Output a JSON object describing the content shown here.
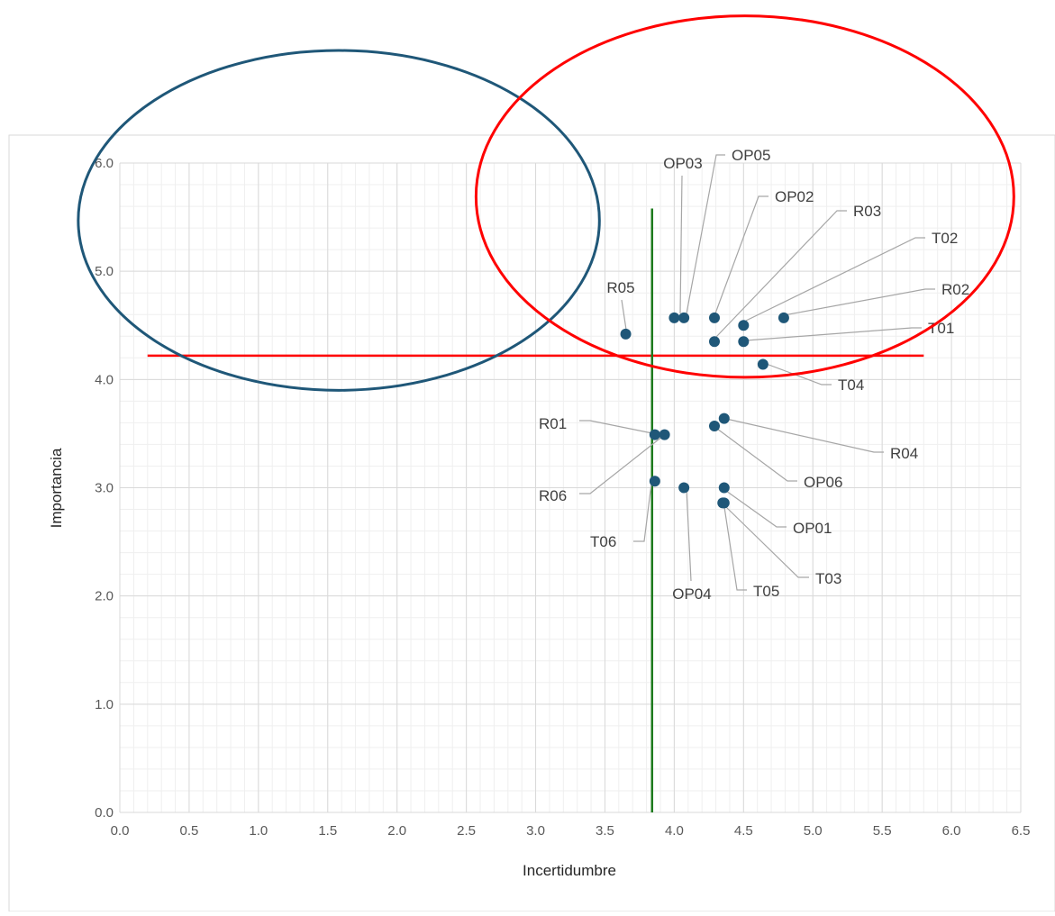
{
  "chart_data": {
    "type": "scatter",
    "xlabel": "Incertidumbre",
    "ylabel": "Importancia",
    "xlim": [
      0,
      6.5
    ],
    "ylim": [
      0,
      6
    ],
    "xticks": [
      "0.0",
      "0.5",
      "1.0",
      "1.5",
      "2.0",
      "2.5",
      "3.0",
      "3.5",
      "4.0",
      "4.5",
      "5.0",
      "5.5",
      "6.0",
      "6.5"
    ],
    "yticks": [
      "0.0",
      "1.0",
      "2.0",
      "3.0",
      "4.0",
      "5.0",
      "6.0"
    ],
    "grid": true,
    "legend": "none",
    "point_color": "#1f5778",
    "points": [
      {
        "label": "R05",
        "x": 3.65,
        "y": 4.42
      },
      {
        "label": "OP03",
        "x": 4.0,
        "y": 4.57
      },
      {
        "label": "OP05",
        "x": 4.07,
        "y": 4.57
      },
      {
        "label": "OP02",
        "x": 4.29,
        "y": 4.57
      },
      {
        "label": "R03",
        "x": 4.29,
        "y": 4.35
      },
      {
        "label": "T02",
        "x": 4.5,
        "y": 4.5
      },
      {
        "label": "R02",
        "x": 4.79,
        "y": 4.57
      },
      {
        "label": "T01",
        "x": 4.5,
        "y": 4.35
      },
      {
        "label": "T04",
        "x": 4.64,
        "y": 4.14
      },
      {
        "label": "R01",
        "x": 3.86,
        "y": 3.49
      },
      {
        "label": "R06",
        "x": 3.93,
        "y": 3.49
      },
      {
        "label": "R04",
        "x": 4.36,
        "y": 3.64
      },
      {
        "label": "OP06",
        "x": 4.29,
        "y": 3.57
      },
      {
        "label": "T06",
        "x": 3.86,
        "y": 3.06
      },
      {
        "label": "OP04",
        "x": 4.07,
        "y": 3.0
      },
      {
        "label": "OP01",
        "x": 4.36,
        "y": 3.0
      },
      {
        "label": "T03",
        "x": 4.36,
        "y": 2.86
      },
      {
        "label": "T05",
        "x": 4.35,
        "y": 2.86
      }
    ],
    "reference_lines": [
      {
        "orientation": "horizontal",
        "value": 4.22,
        "color": "#ff0000"
      },
      {
        "orientation": "vertical",
        "value": 3.84,
        "color": "#1e7b1e"
      }
    ],
    "ellipses": [
      {
        "cx": 1.58,
        "cy": 5.47,
        "rx": 1.88,
        "ry": 1.57,
        "color": "#1f5778"
      },
      {
        "cx": 4.51,
        "cy": 5.69,
        "rx": 1.94,
        "ry": 1.67,
        "color": "#ff0000"
      }
    ]
  }
}
